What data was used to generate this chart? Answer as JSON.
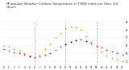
{
  "title": "Milwaukee Weather Outdoor Temperature vs THSW Index per Hour (24 Hours)",
  "title_fontsize": 2.8,
  "background_color": "#ffffff",
  "grid_color": "#999999",
  "hours": [
    0,
    1,
    2,
    3,
    4,
    5,
    6,
    7,
    8,
    9,
    10,
    11,
    12,
    13,
    14,
    15,
    16,
    17,
    18,
    19,
    20,
    21,
    22,
    23
  ],
  "temp_F": [
    55,
    53,
    51,
    50,
    48,
    46,
    45,
    46,
    48,
    50,
    54,
    58,
    62,
    65,
    67,
    68,
    66,
    63,
    60,
    57,
    54,
    52,
    50,
    48
  ],
  "thsw": [
    60,
    58,
    55,
    53,
    50,
    47,
    44,
    48,
    55,
    62,
    70,
    76,
    82,
    84,
    83,
    80,
    72,
    65,
    58,
    52,
    47,
    44,
    42,
    40
  ],
  "black_dots_x": [
    5,
    12,
    13,
    14,
    16
  ],
  "black_dots_temp": [
    46,
    62,
    65,
    67,
    66
  ],
  "temp_color": "#ff0000",
  "thsw_color": "#ff8800",
  "black_color": "#111111",
  "ylim_min": 35,
  "ylim_max": 90,
  "ytick_values": [
    40,
    50,
    60,
    70,
    80,
    90
  ],
  "xtick_labels": [
    "0",
    "1",
    "2",
    "3",
    "4",
    "5",
    "6",
    "7",
    "8",
    "9",
    "10",
    "11",
    "12",
    "13",
    "14",
    "15",
    "16",
    "17",
    "18",
    "19",
    "20",
    "21",
    "22",
    "23"
  ],
  "vline_positions": [
    6,
    12,
    18
  ],
  "vline_color": "#aaaaaa"
}
